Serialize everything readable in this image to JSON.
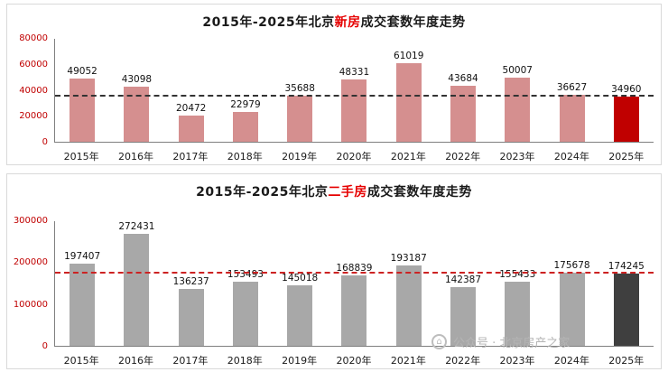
{
  "watermark": {
    "text": "公众号 · 北京房产之家",
    "icon": "brand-logo-icon"
  },
  "chart_data": [
    {
      "type": "bar",
      "title_prefix": "2015年-2025年北京",
      "title_highlight": "新房",
      "title_suffix": "成交套数年度走势",
      "categories": [
        "2015年",
        "2016年",
        "2017年",
        "2018年",
        "2019年",
        "2020年",
        "2021年",
        "2022年",
        "2023年",
        "2024年",
        "2025年"
      ],
      "values": [
        49052,
        43098,
        20472,
        22979,
        35688,
        48331,
        61019,
        43684,
        50007,
        36627,
        34960
      ],
      "ylim": [
        0,
        80000
      ],
      "yticks": [
        0,
        20000,
        40000,
        60000,
        80000
      ],
      "bar_color": "#d58f8f",
      "last_bar_color": "#c00000",
      "tick_color": "#c00000",
      "xtick_color": "#1a1a1a",
      "value_label_color": "#111111",
      "ref_line": {
        "value": 34960,
        "color": "#333333",
        "style": "dashed"
      },
      "grid": false,
      "legend_position": "none"
    },
    {
      "type": "bar",
      "title_prefix": "2015年-2025年北京",
      "title_highlight": "二手房",
      "title_suffix": "成交套数年度走势",
      "categories": [
        "2015年",
        "2016年",
        "2017年",
        "2018年",
        "2019年",
        "2020年",
        "2021年",
        "2022年",
        "2023年",
        "2024年",
        "2025年"
      ],
      "values": [
        197407,
        272431,
        136237,
        153493,
        145018,
        168839,
        193187,
        142387,
        155433,
        175678,
        174245
      ],
      "ylim": [
        0,
        300000
      ],
      "yticks": [
        0,
        100000,
        200000,
        300000
      ],
      "bar_color": "#a8a8a8",
      "last_bar_color": "#3f3f3f",
      "tick_color": "#c00000",
      "xtick_color": "#1a1a1a",
      "value_label_color": "#111111",
      "ref_line": {
        "value": 174245,
        "color": "#cc2222",
        "style": "dashed"
      },
      "grid": false,
      "legend_position": "none"
    }
  ]
}
